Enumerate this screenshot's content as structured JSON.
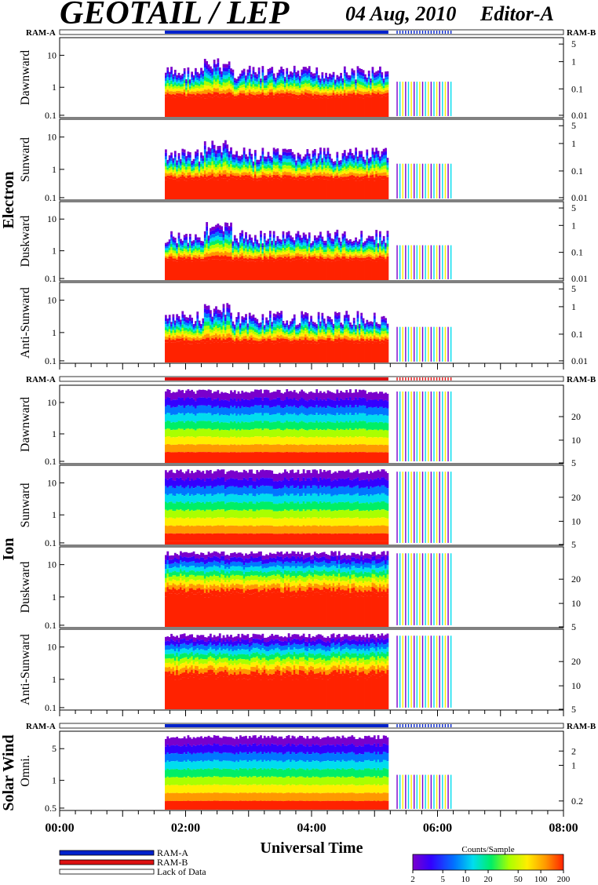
{
  "header": {
    "title": "GEOTAIL / LEP",
    "date": "04 Aug, 2010",
    "editor": "Editor-A"
  },
  "chart_data": {
    "type": "heatmap",
    "xlabel": "Universal Time",
    "x_ticks": [
      "00:00",
      "02:00",
      "04:00",
      "06:00",
      "08:00"
    ],
    "x_range_hours": [
      0,
      8
    ],
    "data_start_hour": 1.67,
    "data_end_hour": 6.22,
    "groups": [
      {
        "name": "Electron",
        "ram_left": "RAM-A",
        "ram_right": "RAM-B",
        "ram_bar_color": "#0022cc",
        "panels": [
          {
            "name": "Dawnward",
            "left_ticks": [
              "10",
              "1",
              "0.1"
            ],
            "right_ticks": [
              "5",
              "1",
              "0.1",
              "0.01"
            ]
          },
          {
            "name": "Sunward",
            "left_ticks": [
              "10",
              "1",
              "0.1"
            ],
            "right_ticks": [
              "5",
              "1",
              "0.1",
              "0.01"
            ]
          },
          {
            "name": "Duskward",
            "left_ticks": [
              "10",
              "1",
              "0.1"
            ],
            "right_ticks": [
              "5",
              "1",
              "0.1",
              "0.01"
            ]
          },
          {
            "name": "Anti-Sunward",
            "left_ticks": [
              "10",
              "1",
              "0.1"
            ],
            "right_ticks": [
              "5",
              "1",
              "0.1",
              "0.01"
            ]
          }
        ]
      },
      {
        "name": "Ion",
        "ram_left": "RAM-A",
        "ram_right": "RAM-B",
        "ram_bar_color": "#dd1111",
        "panels": [
          {
            "name": "Dawnward",
            "left_ticks": [
              "10",
              "1",
              "0.1"
            ],
            "right_ticks": [
              "20",
              "10",
              "5"
            ]
          },
          {
            "name": "Sunward",
            "left_ticks": [
              "10",
              "1",
              "0.1"
            ],
            "right_ticks": [
              "20",
              "10",
              "5"
            ]
          },
          {
            "name": "Duskward",
            "left_ticks": [
              "10",
              "1",
              "0.1"
            ],
            "right_ticks": [
              "20",
              "10",
              "5"
            ]
          },
          {
            "name": "Anti-Sunward",
            "left_ticks": [
              "10",
              "1",
              "0.1"
            ],
            "right_ticks": [
              "20",
              "10",
              "5"
            ]
          }
        ]
      },
      {
        "name": "Solar Wind",
        "ram_left": "RAM-A",
        "ram_right": "RAM-B",
        "ram_bar_color": "#0022cc",
        "panels": [
          {
            "name": "Omni.",
            "left_ticks": [
              "5",
              "1",
              "0.5"
            ],
            "right_ticks": [
              "2",
              "1",
              "0.2"
            ]
          }
        ]
      }
    ],
    "legend": [
      {
        "label": "RAM-A",
        "color": "#0022cc"
      },
      {
        "label": "RAM-B",
        "color": "#dd1111"
      },
      {
        "label": "Lack of Data",
        "color": "#ffffff"
      }
    ],
    "colorbar": {
      "title": "Counts/Sample",
      "ticks": [
        "2",
        "5",
        "10",
        "20",
        "50",
        "100",
        "200"
      ],
      "colors": [
        "#7a00cc",
        "#3300ff",
        "#0077ff",
        "#00ddee",
        "#00ee66",
        "#aaff00",
        "#ffee00",
        "#ff9900",
        "#ff2200"
      ]
    }
  }
}
